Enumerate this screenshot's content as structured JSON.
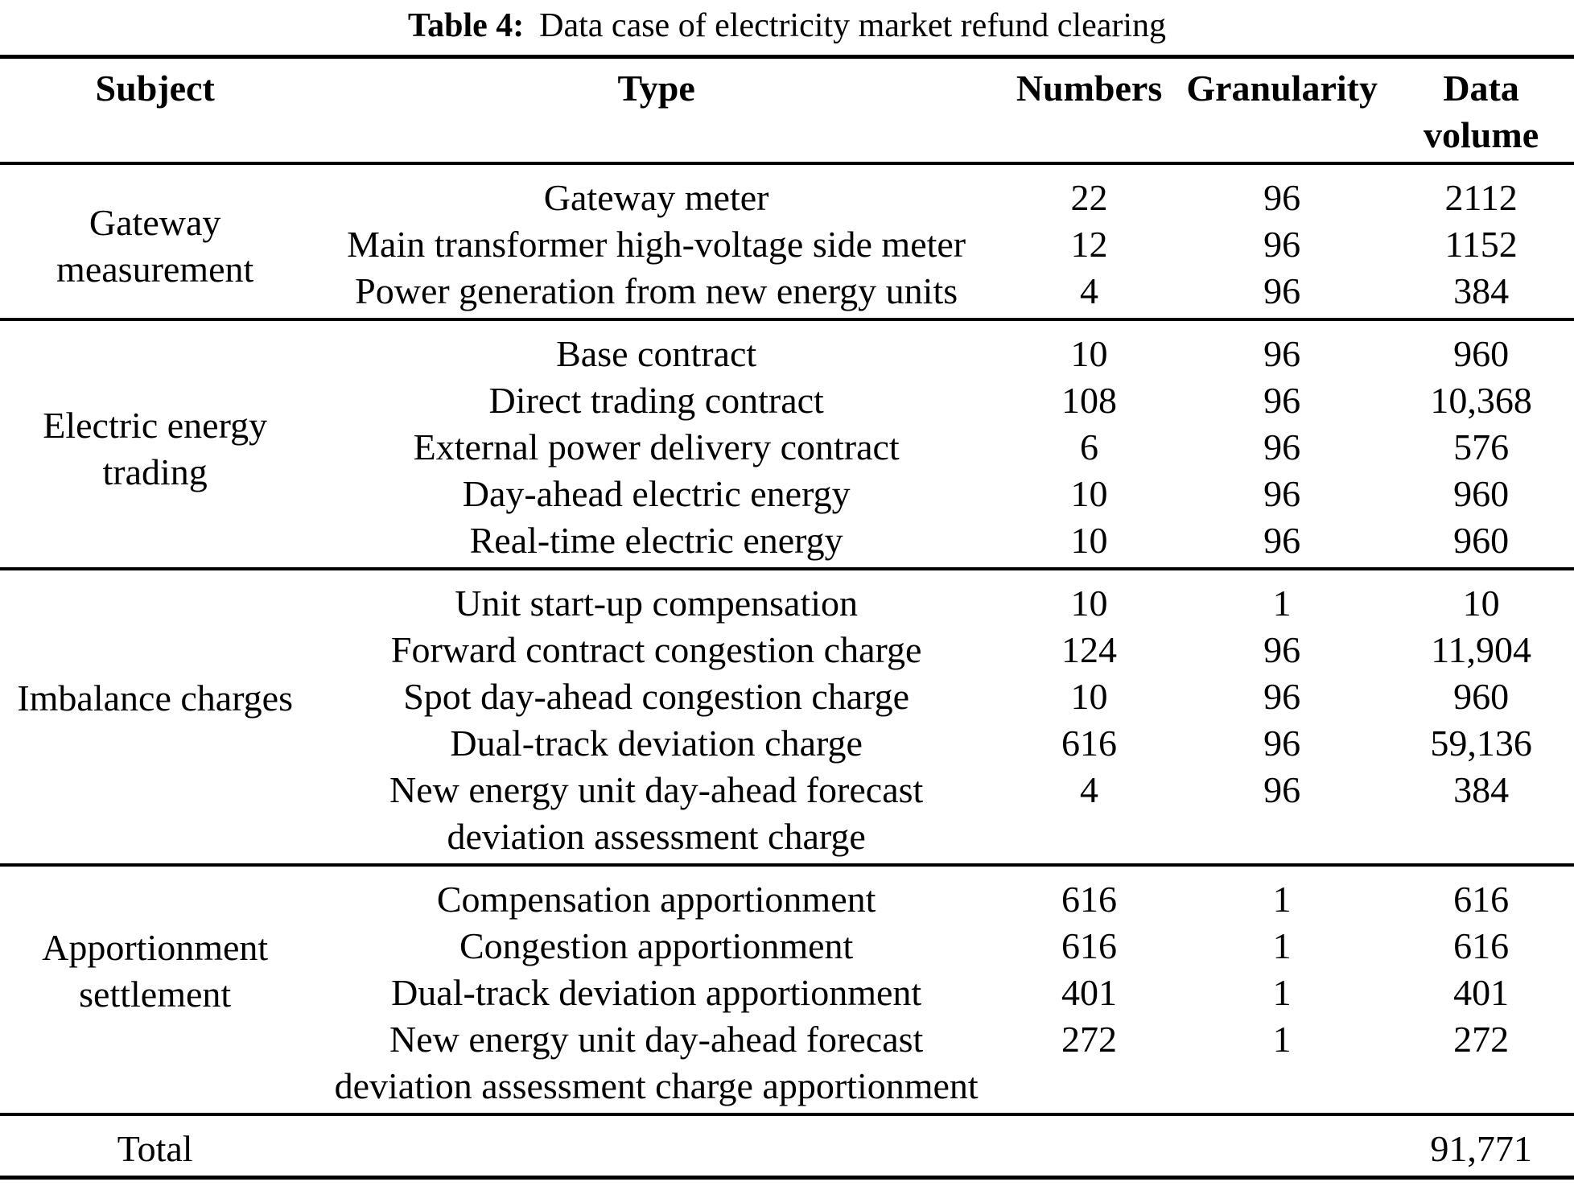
{
  "caption": {
    "label": "Table 4:",
    "text": "Data case of electricity market refund clearing"
  },
  "columns": [
    "Subject",
    "Type",
    "Numbers",
    "Granularity",
    "Data volume"
  ],
  "groups": [
    {
      "subject": "Gateway measurement",
      "rows": [
        {
          "type": "Gateway meter",
          "numbers": "22",
          "granularity": "96",
          "volume": "2112"
        },
        {
          "type": "Main transformer high-voltage side meter",
          "numbers": "12",
          "granularity": "96",
          "volume": "1152"
        },
        {
          "type": "Power generation from new energy units",
          "numbers": "4",
          "granularity": "96",
          "volume": "384"
        }
      ]
    },
    {
      "subject": "Electric energy trading",
      "rows": [
        {
          "type": "Base contract",
          "numbers": "10",
          "granularity": "96",
          "volume": "960"
        },
        {
          "type": "Direct trading contract",
          "numbers": "108",
          "granularity": "96",
          "volume": "10,368"
        },
        {
          "type": "External power delivery contract",
          "numbers": "6",
          "granularity": "96",
          "volume": "576"
        },
        {
          "type": "Day-ahead electric energy",
          "numbers": "10",
          "granularity": "96",
          "volume": "960"
        },
        {
          "type": "Real-time electric energy",
          "numbers": "10",
          "granularity": "96",
          "volume": "960"
        }
      ]
    },
    {
      "subject": "Imbalance charges",
      "rows": [
        {
          "type": "Unit start-up compensation",
          "numbers": "10",
          "granularity": "1",
          "volume": "10"
        },
        {
          "type": "Forward contract congestion charge",
          "numbers": "124",
          "granularity": "96",
          "volume": "11,904"
        },
        {
          "type": "Spot day-ahead congestion charge",
          "numbers": "10",
          "granularity": "96",
          "volume": "960"
        },
        {
          "type": "Dual-track deviation charge",
          "numbers": "616",
          "granularity": "96",
          "volume": "59,136"
        },
        {
          "type": "New energy unit day-ahead forecast deviation assessment charge",
          "numbers": "4",
          "granularity": "96",
          "volume": "384"
        }
      ]
    },
    {
      "subject": "Apportionment settlement",
      "rows": [
        {
          "type": "Compensation apportionment",
          "numbers": "616",
          "granularity": "1",
          "volume": "616"
        },
        {
          "type": "Congestion apportionment",
          "numbers": "616",
          "granularity": "1",
          "volume": "616"
        },
        {
          "type": "Dual-track deviation apportionment",
          "numbers": "401",
          "granularity": "1",
          "volume": "401"
        },
        {
          "type": "New energy unit day-ahead forecast deviation assessment charge apportionment",
          "numbers": "272",
          "granularity": "1",
          "volume": "272"
        }
      ]
    }
  ],
  "total": {
    "label": "Total",
    "value": "91,771"
  },
  "colors": {
    "text": "#000000",
    "rule": "#000000",
    "background": "#ffffff"
  }
}
